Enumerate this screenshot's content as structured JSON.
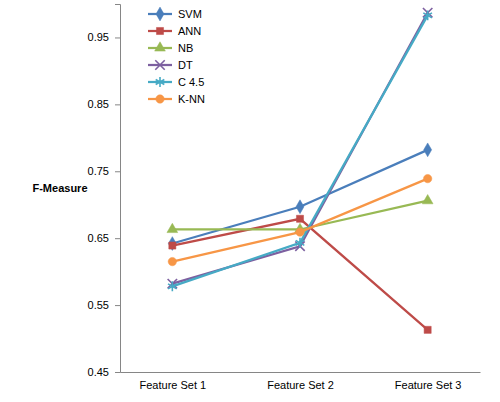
{
  "chart_data": {
    "type": "line",
    "y_label": "F-Measure",
    "categories": [
      "Feature Set 1",
      "Feature Set 2",
      "Feature Set 3"
    ],
    "series": [
      {
        "name": "SVM",
        "color": "#4a7ebb",
        "marker": "diamond",
        "values": [
          0.642,
          0.697,
          0.782
        ]
      },
      {
        "name": "ANN",
        "color": "#be4b48",
        "marker": "square",
        "values": [
          0.639,
          0.679,
          0.513
        ]
      },
      {
        "name": "NB",
        "color": "#98b954",
        "marker": "triangle",
        "values": [
          0.663,
          0.663,
          0.706
        ]
      },
      {
        "name": "DT",
        "color": "#7d60a0",
        "marker": "x",
        "values": [
          0.582,
          0.638,
          0.987
        ]
      },
      {
        "name": "C 4.5",
        "color": "#46aac5",
        "marker": "star",
        "values": [
          0.578,
          0.643,
          0.983
        ]
      },
      {
        "name": "K-NN",
        "color": "#f79646",
        "marker": "circle",
        "values": [
          0.615,
          0.659,
          0.739
        ]
      }
    ],
    "ylim": [
      0.45,
      1.0
    ],
    "yticks": [
      0.45,
      0.55,
      0.65,
      0.75,
      0.85,
      0.95
    ],
    "grid": false,
    "legend": "upper left"
  }
}
